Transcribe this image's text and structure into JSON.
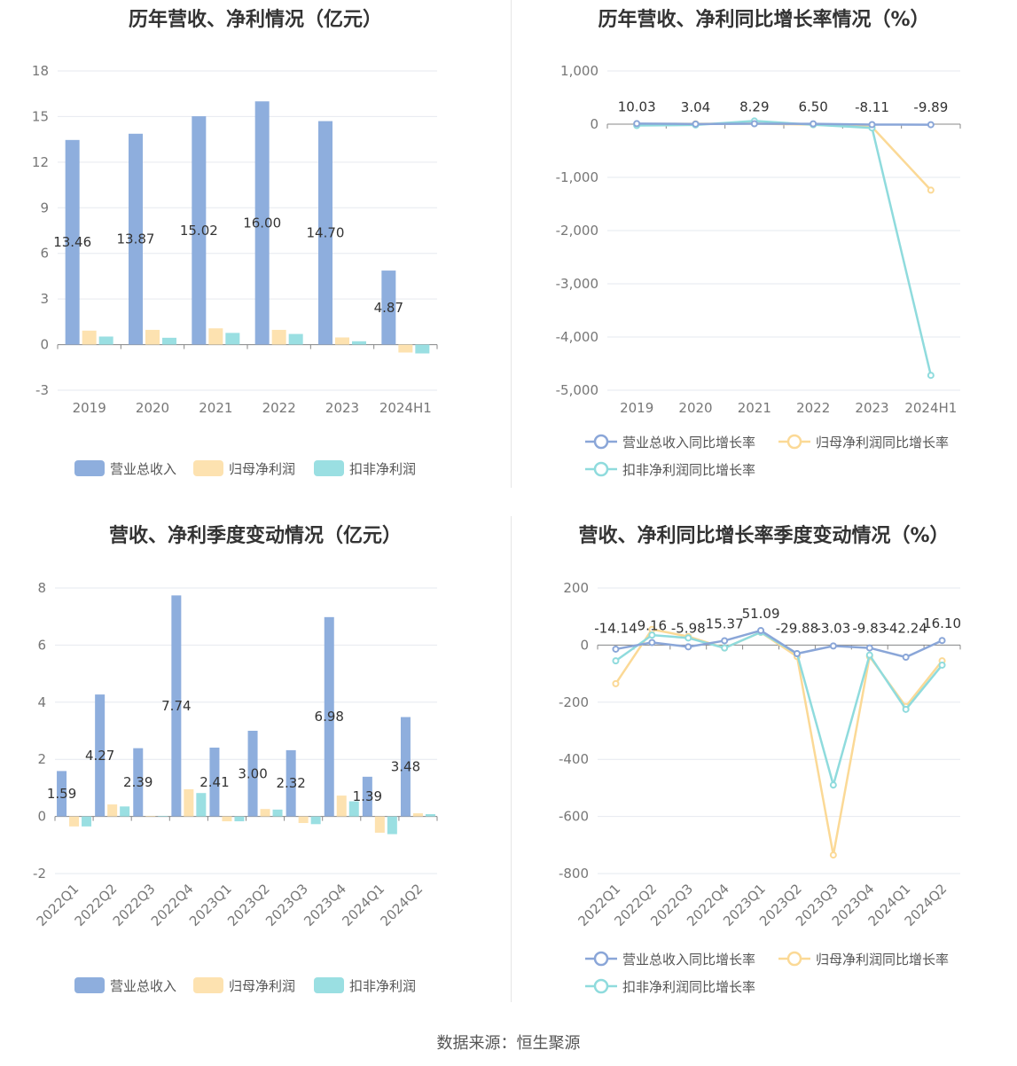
{
  "colors": {
    "revenue": "#8eaedd",
    "net": "#fde2b0",
    "deducted": "#9adfe2",
    "grid": "#e6e9ef",
    "axis": "#888888"
  },
  "source": "数据来源：恒生聚源",
  "charts": [
    {
      "title": "历年营收、净利情况（亿元）",
      "type": "bar",
      "categories": [
        "2019",
        "2020",
        "2021",
        "2022",
        "2023",
        "2024H1"
      ],
      "yticks": [
        "-3",
        "0",
        "3",
        "6",
        "9",
        "12",
        "15",
        "18"
      ],
      "ylim": [
        -3,
        18
      ],
      "series": [
        {
          "name": "营业总收入",
          "values": [
            13.46,
            13.87,
            15.02,
            16.0,
            14.7,
            4.87
          ],
          "labels": [
            "13.46",
            "13.87",
            "15.02",
            "16.00",
            "14.70",
            "4.87"
          ]
        },
        {
          "name": "归母净利润",
          "values": [
            0.92,
            0.97,
            1.07,
            0.97,
            0.47,
            -0.52
          ]
        },
        {
          "name": "扣非净利润",
          "values": [
            0.53,
            0.45,
            0.77,
            0.7,
            0.22,
            -0.58
          ]
        }
      ]
    },
    {
      "title": "历年营收、净利同比增长率情况（%）",
      "type": "line",
      "categories": [
        "2019",
        "2020",
        "2021",
        "2022",
        "2023",
        "2024H1"
      ],
      "yticks": [
        "-5,000",
        "-4,000",
        "-3,000",
        "-2,000",
        "-1,000",
        "0",
        "1,000"
      ],
      "ylim": [
        -5000,
        1000
      ],
      "series": [
        {
          "name": "营业总收入同比增长率",
          "values": [
            10.03,
            3.04,
            8.29,
            6.5,
            -8.11,
            -9.89
          ],
          "labels": [
            "10.03",
            "3.04",
            "8.29",
            "6.50",
            "-8.11",
            "-9.89"
          ]
        },
        {
          "name": "归母净利润同比增长率",
          "values": [
            5,
            6,
            10,
            -9,
            -52,
            -1240
          ]
        },
        {
          "name": "扣非净利润同比增长率",
          "values": [
            -25,
            -15,
            60,
            -10,
            -70,
            -4720
          ]
        }
      ]
    },
    {
      "title": "营收、净利季度变动情况（亿元）",
      "type": "bar",
      "categories": [
        "2022Q1",
        "2022Q2",
        "2022Q3",
        "2022Q4",
        "2023Q1",
        "2023Q2",
        "2023Q3",
        "2023Q4",
        "2024Q1",
        "2024Q2"
      ],
      "yticks": [
        "-2",
        "0",
        "2",
        "4",
        "6",
        "8"
      ],
      "ylim": [
        -2,
        8
      ],
      "series": [
        {
          "name": "营业总收入",
          "values": [
            1.59,
            4.27,
            2.39,
            7.74,
            2.41,
            3.0,
            2.32,
            6.98,
            1.39,
            3.48
          ],
          "labels": [
            "1.59",
            "4.27",
            "2.39",
            "7.74",
            "2.41",
            "3.00",
            "2.32",
            "6.98",
            "1.39",
            "3.48"
          ]
        },
        {
          "name": "归母净利润",
          "values": [
            -0.35,
            0.42,
            0.02,
            0.95,
            -0.17,
            0.26,
            -0.23,
            0.73,
            -0.57,
            0.11
          ]
        },
        {
          "name": "扣非净利润",
          "values": [
            -0.35,
            0.35,
            0.02,
            0.82,
            -0.17,
            0.24,
            -0.27,
            0.53,
            -0.62,
            0.08
          ]
        }
      ]
    },
    {
      "title": "营收、净利同比增长率季度变动情况（%）",
      "type": "line",
      "categories": [
        "2022Q1",
        "2022Q2",
        "2022Q3",
        "2022Q4",
        "2023Q1",
        "2023Q2",
        "2023Q3",
        "2023Q4",
        "2024Q1",
        "2024Q2"
      ],
      "yticks": [
        "-800",
        "-600",
        "-400",
        "-200",
        "0",
        "200"
      ],
      "ylim": [
        -800,
        200
      ],
      "series": [
        {
          "name": "营业总收入同比增长率",
          "values": [
            -14.14,
            9.16,
            -5.98,
            15.37,
            51.09,
            -29.88,
            -3.03,
            -9.83,
            -42.24,
            16.1
          ],
          "labels": [
            "-14.14",
            "9.16",
            "-5.98",
            "15.37",
            "51.09",
            "-29.88",
            "-3.03",
            "-9.83",
            "-42.24",
            "16.10"
          ]
        },
        {
          "name": "归母净利润同比增长率",
          "values": [
            -135,
            55,
            30,
            -10,
            45,
            -40,
            -735,
            -40,
            -215,
            -55
          ]
        },
        {
          "name": "扣非净利润同比增长率",
          "values": [
            -55,
            35,
            25,
            -10,
            45,
            -30,
            -490,
            -35,
            -225,
            -70
          ]
        }
      ]
    }
  ]
}
